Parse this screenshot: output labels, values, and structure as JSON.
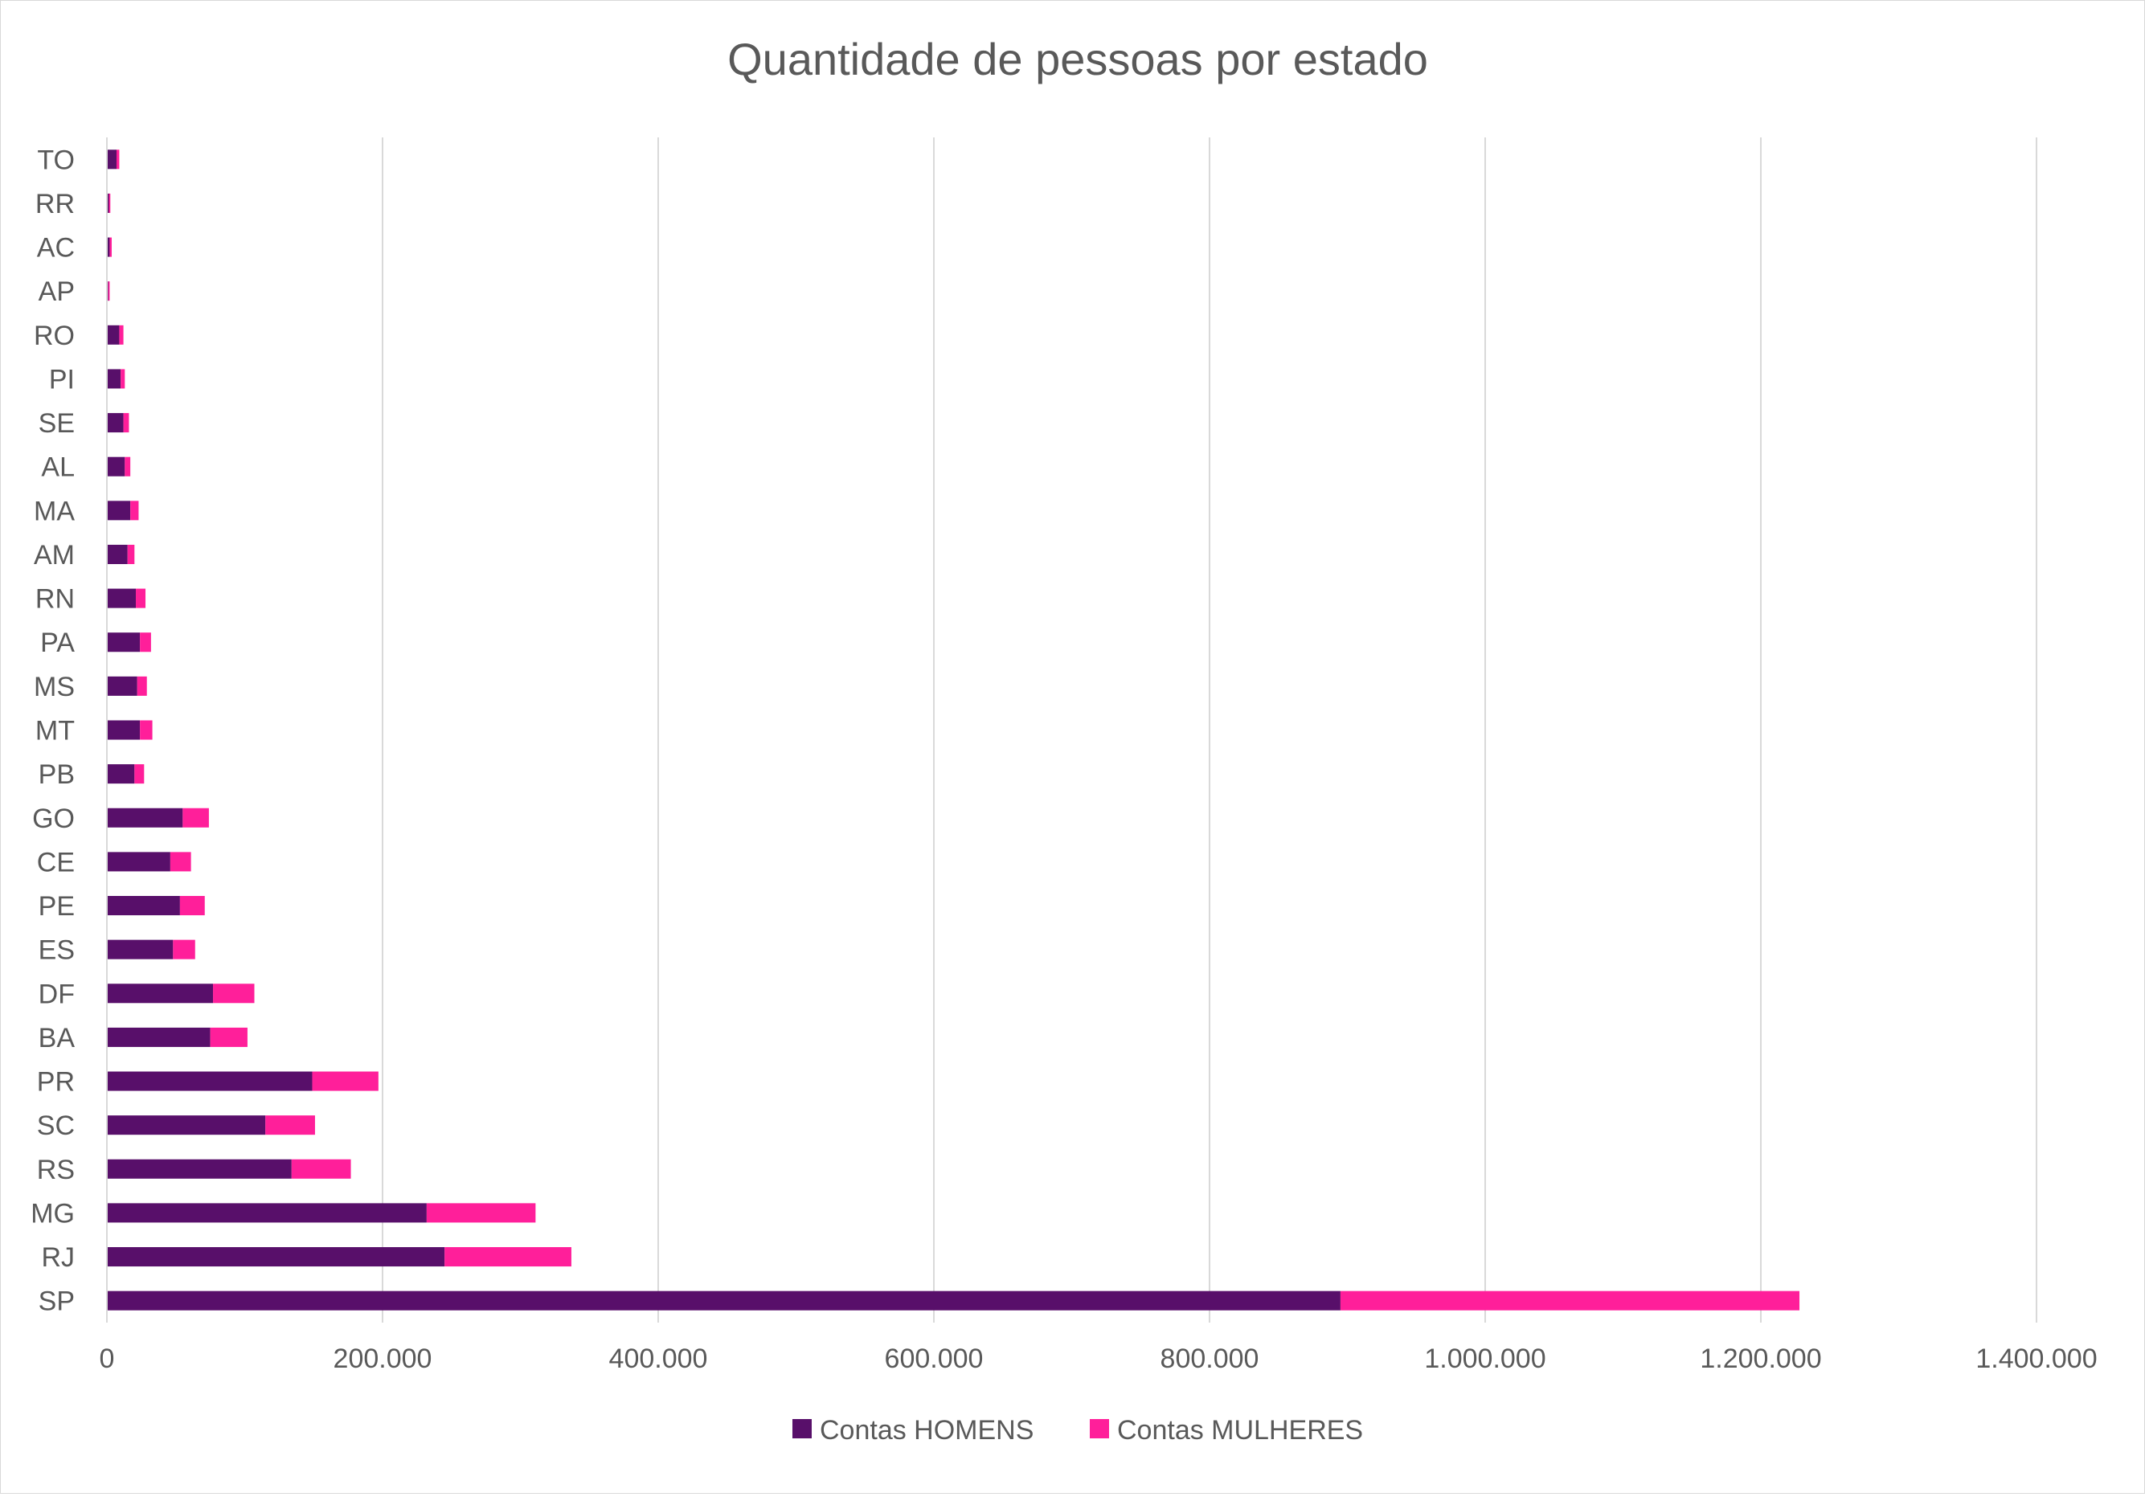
{
  "chart_data": {
    "type": "bar",
    "orientation": "horizontal",
    "stacked": true,
    "title": "Quantidade de pessoas por estado",
    "xlabel": "",
    "ylabel": "",
    "xlim": [
      0,
      1400000
    ],
    "x_ticks": [
      0,
      200000,
      400000,
      600000,
      800000,
      1000000,
      1200000,
      1400000
    ],
    "x_tick_labels": [
      "0",
      "200.000",
      "400.000",
      "600.000",
      "800.000",
      "1.000.000",
      "1.200.000",
      "1.400.000"
    ],
    "grid": true,
    "legend_position": "bottom",
    "categories": [
      "SP",
      "RJ",
      "MG",
      "RS",
      "SC",
      "PR",
      "BA",
      "DF",
      "ES",
      "PE",
      "CE",
      "GO",
      "PB",
      "MT",
      "MS",
      "PA",
      "RN",
      "AM",
      "MA",
      "AL",
      "SE",
      "PI",
      "RO",
      "AP",
      "AC",
      "RR",
      "TO"
    ],
    "series": [
      {
        "name": "Contas HOMENS",
        "color": "#580F6A",
        "values": [
          895000,
          245000,
          232000,
          134000,
          115000,
          149000,
          75000,
          77000,
          48000,
          53000,
          46000,
          55000,
          20000,
          24000,
          22000,
          24000,
          21000,
          15000,
          17000,
          13000,
          12000,
          10000,
          9000,
          1000,
          2000,
          1500,
          7000
        ]
      },
      {
        "name": "Contas MULHERES",
        "color": "#FF1F9A",
        "values": [
          333000,
          92000,
          79000,
          43000,
          36000,
          48000,
          27000,
          30000,
          16000,
          18000,
          15000,
          19000,
          7000,
          9000,
          7000,
          8000,
          7000,
          5000,
          6000,
          4000,
          4000,
          3000,
          3000,
          1000,
          1500,
          1000,
          2000
        ]
      }
    ]
  }
}
